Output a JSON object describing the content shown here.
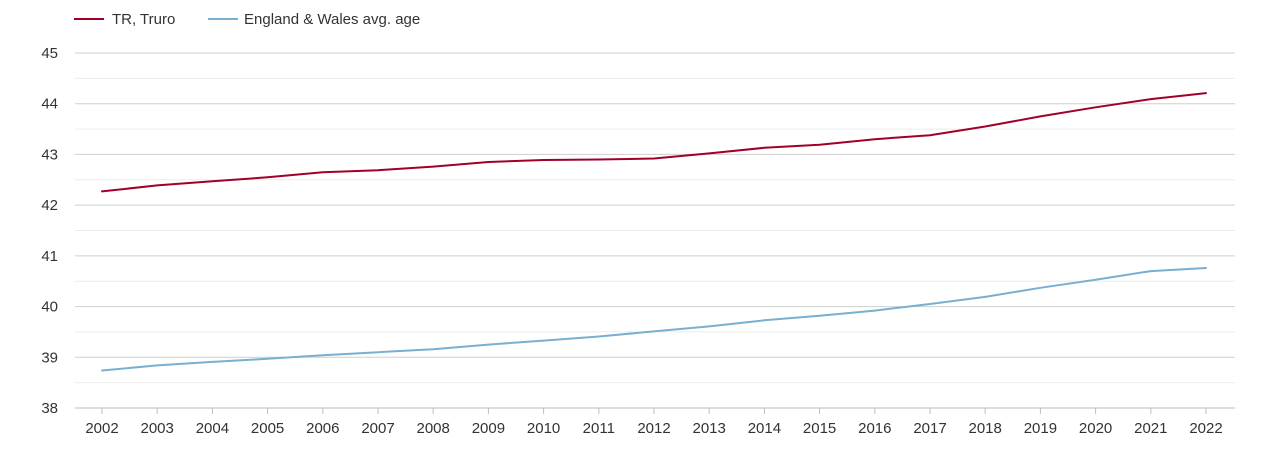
{
  "chart_data": {
    "type": "line",
    "title": "",
    "xlabel": "",
    "ylabel": "",
    "x": [
      "2002",
      "2003",
      "2004",
      "2005",
      "2006",
      "2007",
      "2008",
      "2009",
      "2010",
      "2011",
      "2012",
      "2013",
      "2014",
      "2015",
      "2016",
      "2017",
      "2018",
      "2019",
      "2020",
      "2021",
      "2022"
    ],
    "ylim": [
      38,
      45
    ],
    "yticks": [
      "38",
      "39",
      "40",
      "41",
      "42",
      "43",
      "44",
      "45"
    ],
    "minor_gridlines": true,
    "legend_position": "top-left",
    "series": [
      {
        "name": "TR, Truro",
        "color": "#a0002a",
        "values": [
          42.27,
          42.39,
          42.47,
          42.55,
          42.65,
          42.69,
          42.76,
          42.85,
          42.89,
          42.9,
          42.92,
          43.02,
          43.13,
          43.19,
          43.3,
          43.38,
          43.55,
          43.75,
          43.93,
          44.09,
          44.21
        ]
      },
      {
        "name": "England & Wales avg. age",
        "color": "#7aafd2",
        "values": [
          38.74,
          38.84,
          38.91,
          38.97,
          39.04,
          39.1,
          39.16,
          39.25,
          39.33,
          39.41,
          39.51,
          39.61,
          39.73,
          39.82,
          39.92,
          40.05,
          40.19,
          40.37,
          40.53,
          40.7,
          40.76
        ]
      }
    ]
  }
}
